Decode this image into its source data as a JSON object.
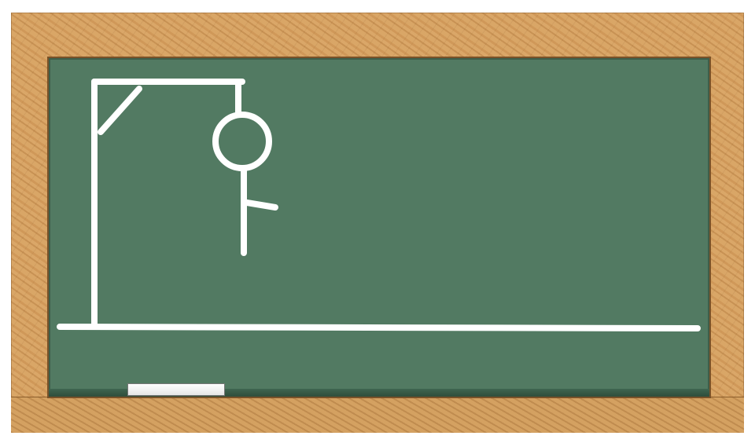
{
  "board": {
    "chalk_color": "#ffffff",
    "board_color": "#527a62",
    "frame_color": "#d6a060"
  },
  "hangman": {
    "parts_drawn": [
      "head",
      "body",
      "right-arm"
    ]
  }
}
